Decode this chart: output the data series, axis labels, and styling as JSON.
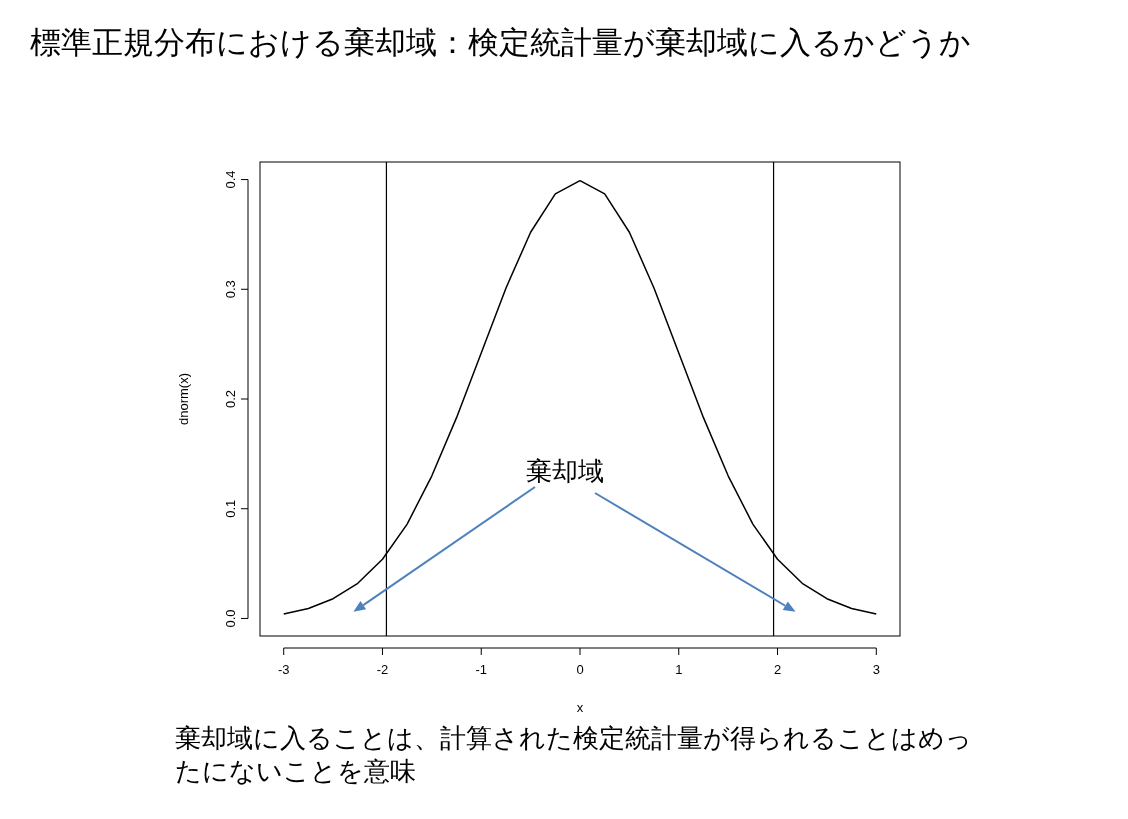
{
  "chart_data": {
    "type": "line",
    "title": "標準正規分布における棄却域：検定統計量が棄却域に入るかどうか",
    "xlabel": "x",
    "ylabel": "dnorm(x)",
    "x": [
      -3,
      -2.75,
      -2.5,
      -2.25,
      -2,
      -1.75,
      -1.5,
      -1.25,
      -1,
      -0.75,
      -0.5,
      -0.25,
      0,
      0.25,
      0.5,
      0.75,
      1,
      1.25,
      1.5,
      1.75,
      2,
      2.25,
      2.5,
      2.75,
      3
    ],
    "values": [
      0.004,
      0.009,
      0.018,
      0.032,
      0.054,
      0.086,
      0.13,
      0.183,
      0.242,
      0.301,
      0.352,
      0.387,
      0.399,
      0.387,
      0.352,
      0.301,
      0.242,
      0.183,
      0.13,
      0.086,
      0.054,
      0.032,
      0.018,
      0.009,
      0.004
    ],
    "color": "#000000",
    "xlim": [
      -3.24,
      3.24
    ],
    "ylim": [
      -0.016,
      0.416
    ],
    "xticks": [
      -3,
      -2,
      -1,
      0,
      1,
      2,
      3
    ],
    "yticks": [
      {
        "value": 0,
        "label": "0.0"
      },
      0.1,
      0.2,
      0.3,
      0.4
    ],
    "ref_lines": [
      {
        "axis": "x",
        "value": -1.96,
        "color": "#000000"
      },
      {
        "axis": "x",
        "value": 1.96,
        "color": "#000000"
      }
    ],
    "annotations": [
      "棄却域",
      "棄却域に入ることは、計算された検定統計量が得られることはめったにないことを意味"
    ],
    "grid": false,
    "marker": "none",
    "line_style": "solid"
  }
}
